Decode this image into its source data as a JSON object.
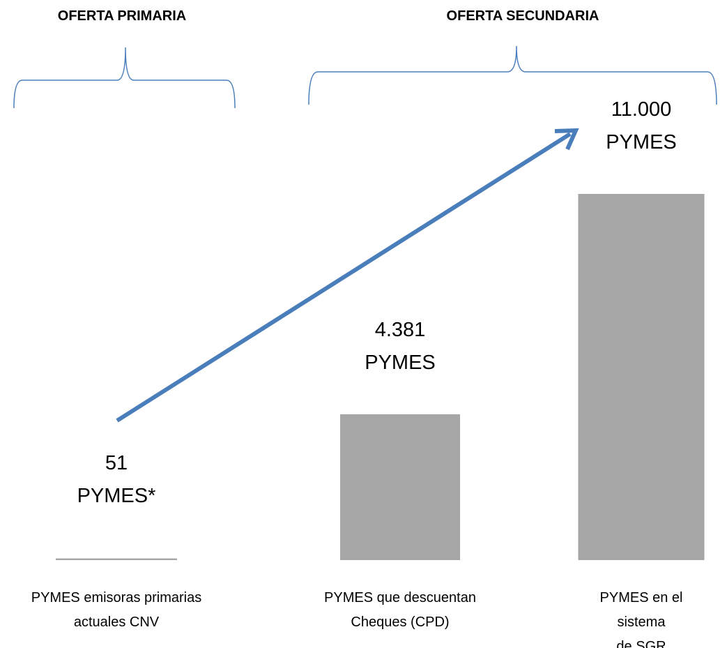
{
  "chart_data": {
    "type": "bar",
    "annotations": [
      "OFERTA PRIMARIA",
      "OFERTA SECUNDARIA"
    ],
    "categories": [
      "PYMES emisoras primarias\nactuales CNV",
      "PYMES que descuentan\nCheques (CPD)",
      "PYMES en el sistema\nde SGR"
    ],
    "values": [
      51,
      4381,
      11000
    ],
    "value_labels": [
      "51\nPYMES*",
      "4.381\nPYMES",
      "11.000\nPYMES"
    ],
    "color": "#a6a6a6",
    "ylim": [
      0,
      11000
    ]
  }
}
